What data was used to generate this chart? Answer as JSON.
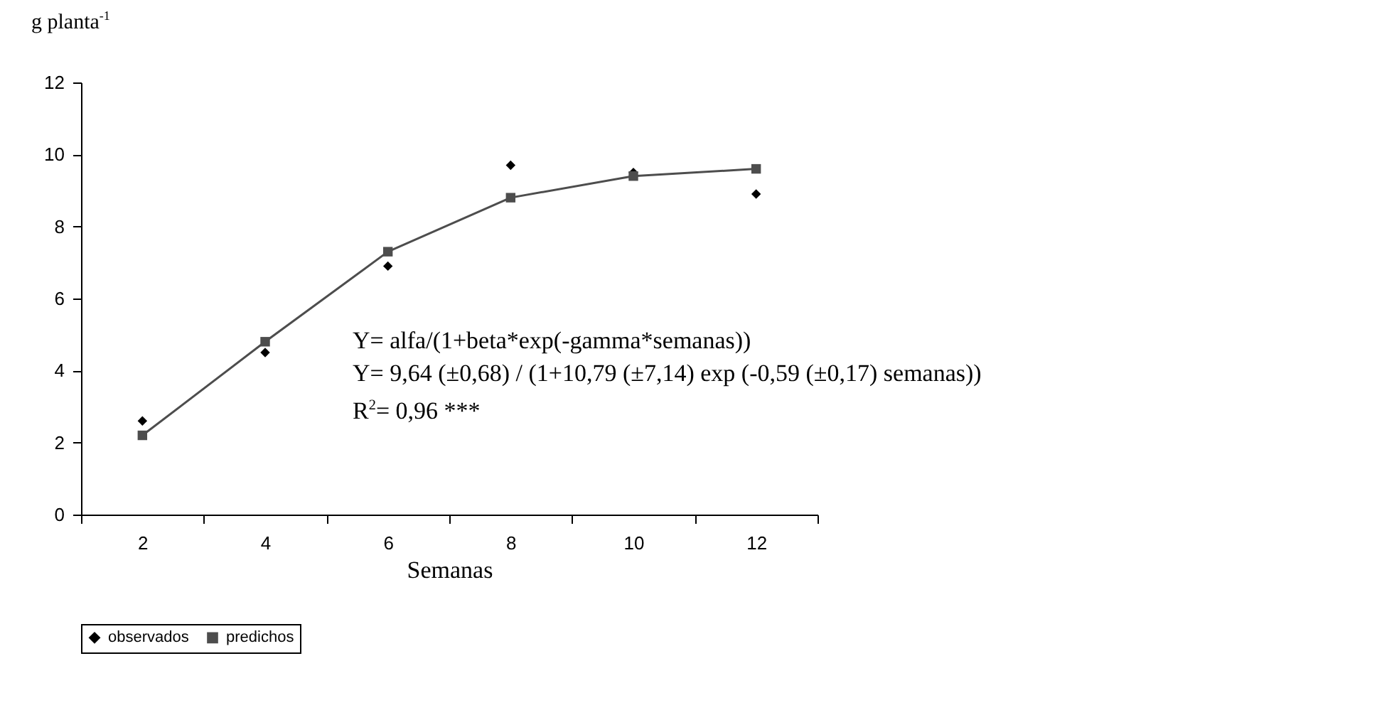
{
  "chart_data": {
    "type": "line",
    "ylabel": "g planta$^{-1}$",
    "xlabel": "Semanas",
    "categories": [
      "2",
      "4",
      "6",
      "8",
      "10",
      "12"
    ],
    "series": [
      {
        "name": "observados",
        "type": "scatter",
        "marker": "diamond",
        "color": "#000000",
        "values": [
          2.6,
          4.5,
          6.9,
          9.7,
          9.5,
          8.9
        ]
      },
      {
        "name": "predichos",
        "type": "line",
        "marker": "square",
        "color": "#4d4d4d",
        "values": [
          2.2,
          4.8,
          7.3,
          8.8,
          9.4,
          9.6
        ]
      }
    ],
    "ylim": [
      0,
      12
    ],
    "yticks": [
      0,
      2,
      4,
      6,
      8,
      10,
      12
    ],
    "grid": false,
    "legend": "bottom",
    "annotations": [
      "Y= alfa/(1+beta*exp(-gamma*semanas))",
      "Y= 9,64 (±0,68) / (1+10,79 (±7,14) exp (-0,59 (±0,17) semanas))",
      "R$^{2}$= 0,96 ***"
    ]
  }
}
